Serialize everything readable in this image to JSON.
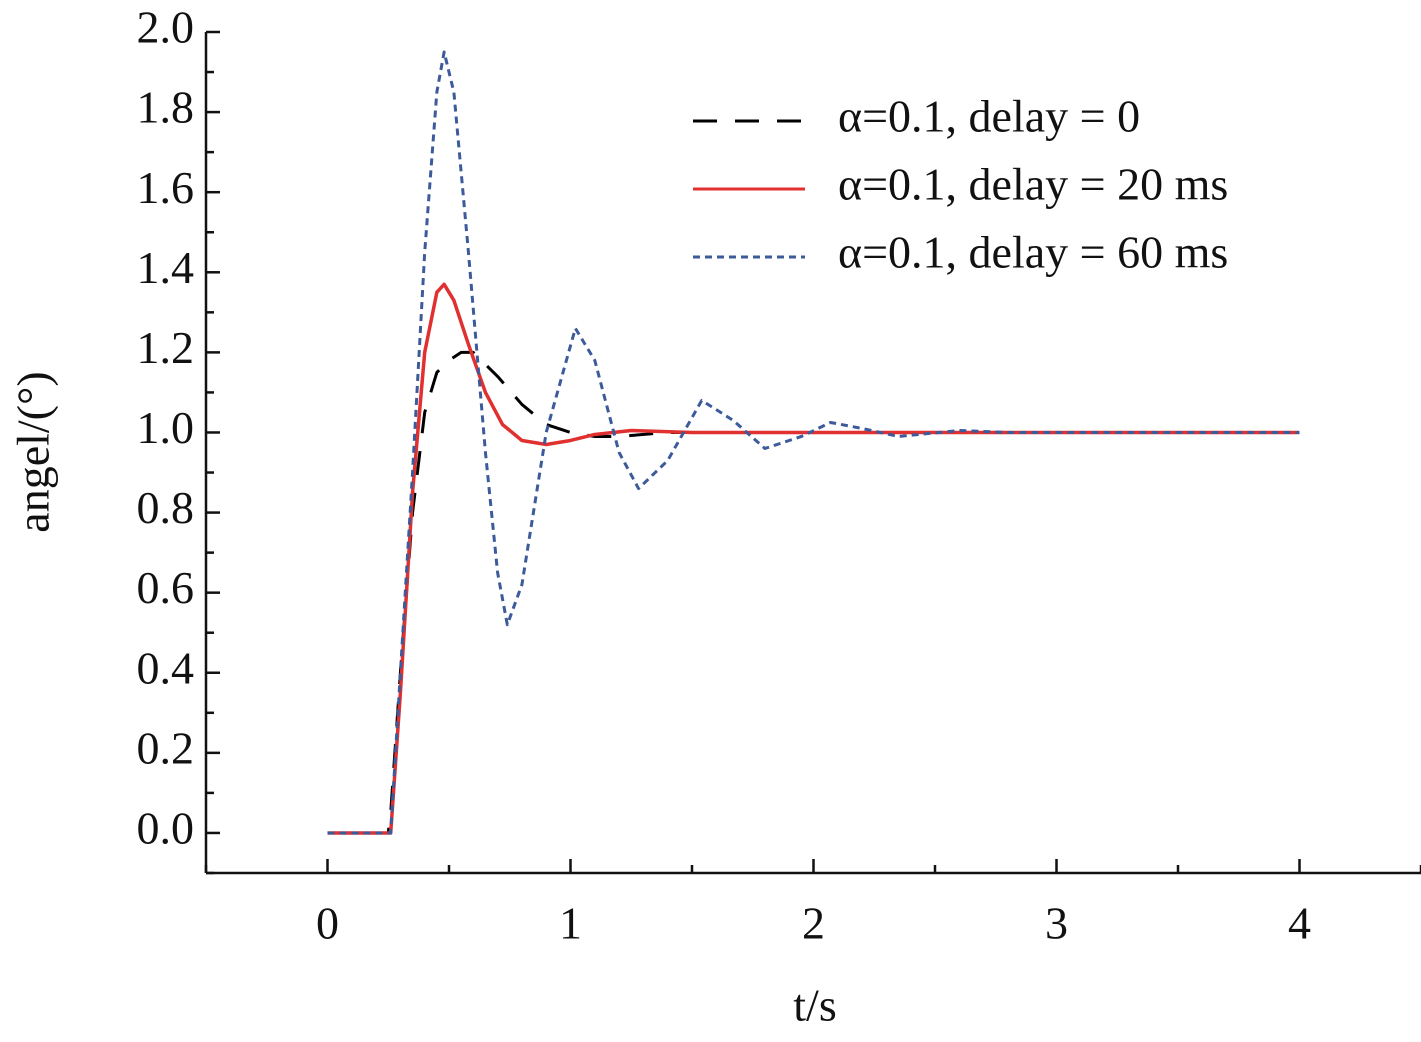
{
  "chart_data": {
    "type": "line",
    "xlabel": "t/s",
    "ylabel": "angel/(°)",
    "xlim": [
      -0.5,
      4.5
    ],
    "ylim": [
      -0.1,
      2.0
    ],
    "xticks": [
      0,
      1,
      2,
      3,
      4
    ],
    "xminorticks": [
      -0.5,
      0.5,
      1.5,
      2.5,
      3.5,
      4.5
    ],
    "yticks": [
      {
        "value": 0,
        "label": "0.0"
      },
      0.2,
      0.4,
      0.6,
      0.8,
      {
        "value": 1,
        "label": "1.0"
      },
      1.2,
      1.4,
      1.6,
      1.8,
      {
        "value": 2,
        "label": "2.0"
      }
    ],
    "yminorticks": [
      -0.1,
      0.1,
      0.3,
      0.5,
      0.7,
      0.9,
      1.1,
      1.3,
      1.5,
      1.7,
      1.9
    ],
    "legend": "upper right",
    "series": [
      {
        "name": "α=0.1, delay = 0",
        "color": "#000000",
        "dash": "dashed",
        "x": [
          0,
          0.25,
          0.26,
          0.3,
          0.35,
          0.4,
          0.45,
          0.5,
          0.55,
          0.6,
          0.7,
          0.8,
          0.9,
          1.0,
          1.1,
          1.2,
          1.4,
          1.6,
          2,
          3,
          4
        ],
        "values": [
          0,
          0,
          0.05,
          0.4,
          0.8,
          1.05,
          1.15,
          1.18,
          1.2,
          1.2,
          1.14,
          1.07,
          1.02,
          1.0,
          0.99,
          0.99,
          1.0,
          1.0,
          1.0,
          1.0,
          1.0
        ]
      },
      {
        "name": "α=0.1, delay = 20 ms",
        "color": "#e03030",
        "dash": "solid",
        "x": [
          0,
          0.26,
          0.3,
          0.35,
          0.4,
          0.45,
          0.48,
          0.52,
          0.58,
          0.65,
          0.72,
          0.8,
          0.9,
          1.0,
          1.1,
          1.25,
          1.5,
          2,
          3,
          4
        ],
        "values": [
          0,
          0,
          0.35,
          0.85,
          1.2,
          1.35,
          1.37,
          1.33,
          1.22,
          1.1,
          1.02,
          0.98,
          0.97,
          0.98,
          0.995,
          1.005,
          1.0,
          1.0,
          1.0,
          1.0
        ]
      },
      {
        "name": "α=0.1, delay = 60 ms",
        "color": "#3d5a9a",
        "dash": "dotted",
        "x": [
          0,
          0.26,
          0.3,
          0.35,
          0.4,
          0.45,
          0.48,
          0.52,
          0.58,
          0.65,
          0.7,
          0.74,
          0.8,
          0.9,
          1.02,
          1.1,
          1.2,
          1.28,
          1.4,
          1.54,
          1.67,
          1.8,
          1.95,
          2.07,
          2.2,
          2.35,
          2.6,
          2.8,
          3,
          3.5,
          4
        ],
        "values": [
          0,
          0,
          0.4,
          0.9,
          1.45,
          1.85,
          1.95,
          1.85,
          1.45,
          0.95,
          0.65,
          0.52,
          0.62,
          1.0,
          1.26,
          1.18,
          0.95,
          0.86,
          0.93,
          1.08,
          1.03,
          0.96,
          0.99,
          1.025,
          1.01,
          0.99,
          1.005,
          1.0,
          1.0,
          1.0,
          1.0
        ]
      }
    ]
  }
}
